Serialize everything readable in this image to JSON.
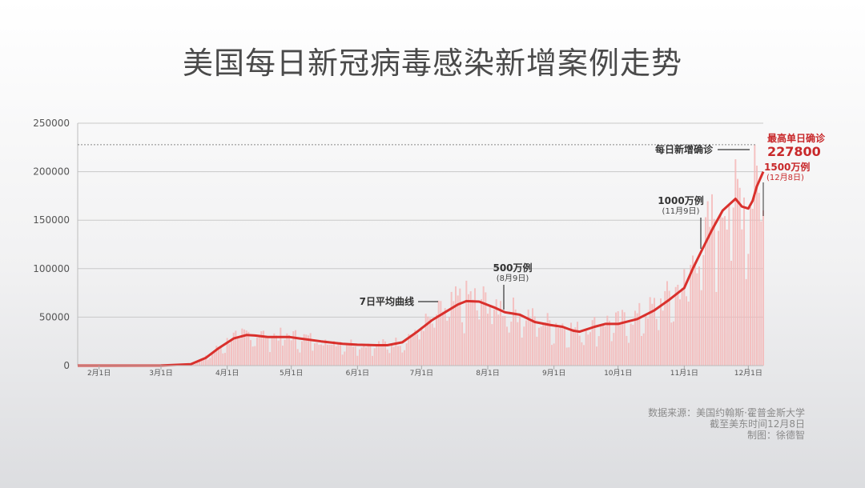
{
  "title": "美国每日新冠病毒感染新增案例走势",
  "credits": {
    "line1": "数据来源：美国约翰斯·霍普金斯大学",
    "line2": "截至美东时间12月8日",
    "line3": "制图：徐德智"
  },
  "colors": {
    "line": "#d9302c",
    "bars": "#f4b9b8",
    "peak": "#c8282a"
  },
  "chart_data": {
    "type": "bar+line",
    "title": "美国每日新冠病毒感染新增案例走势",
    "xlabel": "",
    "ylabel": "",
    "ylim": [
      0,
      250000
    ],
    "y_ticks": [
      "0",
      "50000",
      "100000",
      "150000",
      "200000",
      "250000"
    ],
    "x_ticks": [
      "2月1日",
      "3月1日",
      "4月1日",
      "5月1日",
      "6月1日",
      "7月1日",
      "8月1日",
      "9月1日",
      "10月1日",
      "11月1日",
      "12月1日"
    ],
    "grid": true,
    "peak_line": {
      "value": 227800
    },
    "daily_bars_series": "每日新增确诊",
    "avg_series": "7日平均曲线",
    "avg_points": [
      [
        "2020-01-22",
        0
      ],
      [
        "2020-02-01",
        10
      ],
      [
        "2020-03-01",
        50
      ],
      [
        "2020-03-15",
        1500
      ],
      [
        "2020-03-22",
        8000
      ],
      [
        "2020-03-28",
        18000
      ],
      [
        "2020-04-04",
        28000
      ],
      [
        "2020-04-10",
        31500
      ],
      [
        "2020-04-14",
        31000
      ],
      [
        "2020-04-20",
        29500
      ],
      [
        "2020-04-30",
        29500
      ],
      [
        "2020-05-05",
        28000
      ],
      [
        "2020-05-15",
        25000
      ],
      [
        "2020-05-25",
        22500
      ],
      [
        "2020-06-01",
        21500
      ],
      [
        "2020-06-10",
        21000
      ],
      [
        "2020-06-15",
        21000
      ],
      [
        "2020-06-22",
        24000
      ],
      [
        "2020-06-29",
        35000
      ],
      [
        "2020-07-06",
        47000
      ],
      [
        "2020-07-12",
        55000
      ],
      [
        "2020-07-18",
        63000
      ],
      [
        "2020-07-22",
        66500
      ],
      [
        "2020-07-28",
        66000
      ],
      [
        "2020-08-04",
        60000
      ],
      [
        "2020-08-09",
        55000
      ],
      [
        "2020-08-16",
        52500
      ],
      [
        "2020-08-23",
        45000
      ],
      [
        "2020-08-30",
        42000
      ],
      [
        "2020-09-05",
        40000
      ],
      [
        "2020-09-10",
        36000
      ],
      [
        "2020-09-13",
        35000
      ],
      [
        "2020-09-20",
        40000
      ],
      [
        "2020-09-25",
        43000
      ],
      [
        "2020-10-01",
        43000
      ],
      [
        "2020-10-10",
        48000
      ],
      [
        "2020-10-18",
        57000
      ],
      [
        "2020-10-25",
        68000
      ],
      [
        "2020-11-01",
        80000
      ],
      [
        "2020-11-05",
        100000
      ],
      [
        "2020-11-09",
        118000
      ],
      [
        "2020-11-14",
        140000
      ],
      [
        "2020-11-19",
        160000
      ],
      [
        "2020-11-25",
        172000
      ],
      [
        "2020-11-28",
        164000
      ],
      [
        "2020-12-01",
        162000
      ],
      [
        "2020-12-03",
        170000
      ],
      [
        "2020-12-05",
        185000
      ],
      [
        "2020-12-08",
        200000
      ]
    ],
    "peak_day": {
      "date": "2020-12-04",
      "value": 227800
    }
  },
  "annotations": {
    "avg_label": "7日平均曲线",
    "five_m": {
      "label": "500万例",
      "date": "(8月9日)"
    },
    "ten_m": {
      "label": "1000万例",
      "date": "(11月9日)"
    },
    "fifteen_m": {
      "label": "1500万例",
      "date": "(12月8日)"
    },
    "daily_label": "每日新增确诊",
    "peak_label": "最高单日确诊",
    "peak_value": "227800"
  }
}
